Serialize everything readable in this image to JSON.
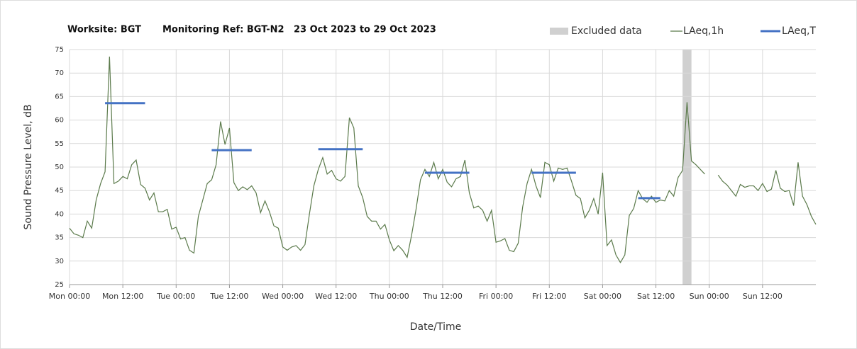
{
  "chart_data": {
    "type": "line",
    "title": [
      "Worksite: BGT",
      "Monitoring Ref: BGT-N2",
      "23 Oct 2023 to 29 Oct 2023"
    ],
    "xlabel": "Date/Time",
    "ylabel": "Sound Pressure Level, dB",
    "xlim": [
      0,
      168
    ],
    "ylim": [
      25,
      75
    ],
    "yticks": [
      25,
      30,
      35,
      40,
      45,
      50,
      55,
      60,
      65,
      70,
      75
    ],
    "xticks": [
      {
        "value": 0,
        "label": "Mon 00:00"
      },
      {
        "value": 12,
        "label": "Mon 12:00"
      },
      {
        "value": 24,
        "label": "Tue 00:00"
      },
      {
        "value": 36,
        "label": "Tue 12:00"
      },
      {
        "value": 48,
        "label": "Wed 00:00"
      },
      {
        "value": 60,
        "label": "Wed 12:00"
      },
      {
        "value": 72,
        "label": "Thu 00:00"
      },
      {
        "value": 84,
        "label": "Thu 12:00"
      },
      {
        "value": 96,
        "label": "Fri 00:00"
      },
      {
        "value": 108,
        "label": "Fri 12:00"
      },
      {
        "value": 120,
        "label": "Sat 00:00"
      },
      {
        "value": 132,
        "label": "Sat 12:00"
      },
      {
        "value": 144,
        "label": "Sun 00:00"
      },
      {
        "value": 156,
        "label": "Sun 12:00"
      }
    ],
    "grid": true,
    "excluded": {
      "name": "Excluded data",
      "color": "#d0d0d0",
      "x": [
        138,
        140
      ]
    },
    "series": [
      {
        "name": "LAeq,1h",
        "color": "#5b7a4b",
        "x": [
          0,
          1,
          2,
          3,
          4,
          5,
          6,
          7,
          8,
          9,
          10,
          11,
          12,
          13,
          14,
          15,
          16,
          17,
          18,
          19,
          20,
          21,
          22,
          23,
          24,
          25,
          26,
          27,
          28,
          29,
          30,
          31,
          32,
          33,
          34,
          35,
          36,
          37,
          38,
          39,
          40,
          41,
          42,
          43,
          44,
          45,
          46,
          47,
          48,
          49,
          50,
          51,
          52,
          53,
          54,
          55,
          56,
          57,
          58,
          59,
          60,
          61,
          62,
          63,
          64,
          65,
          66,
          67,
          68,
          69,
          70,
          71,
          72,
          73,
          74,
          75,
          76,
          77,
          78,
          79,
          80,
          81,
          82,
          83,
          84,
          85,
          86,
          87,
          88,
          89,
          90,
          91,
          92,
          93,
          94,
          95,
          96,
          97,
          98,
          99,
          100,
          101,
          102,
          103,
          104,
          105,
          106,
          107,
          108,
          109,
          110,
          111,
          112,
          113,
          114,
          115,
          116,
          117,
          118,
          119,
          120,
          121,
          122,
          123,
          124,
          125,
          126,
          127,
          128,
          129,
          130,
          131,
          132,
          133,
          134,
          135,
          136,
          137,
          138,
          139,
          140,
          141,
          142,
          143,
          144,
          145,
          146,
          147,
          148,
          149,
          150,
          151,
          152,
          153,
          154,
          155,
          156,
          157,
          158,
          159,
          160,
          161,
          162,
          163,
          164,
          165,
          166,
          167,
          168
        ],
        "values": [
          37,
          35.8,
          35.5,
          35,
          38.5,
          37,
          43,
          46.5,
          49,
          73.5,
          46.5,
          47,
          48,
          47.5,
          50.5,
          51.5,
          46.3,
          45.5,
          43,
          44.5,
          40.5,
          40.5,
          41,
          36.8,
          37.2,
          34.7,
          35,
          32.3,
          31.7,
          39.5,
          43,
          46.5,
          47.3,
          50.5,
          59.7,
          54.8,
          58.3,
          46.7,
          45,
          45.8,
          45.2,
          46,
          44.5,
          40.3,
          42.8,
          40.5,
          37.5,
          37,
          33,
          32.3,
          33,
          33.3,
          32.3,
          33.5,
          40,
          46,
          49.5,
          52,
          48.5,
          49.3,
          47.5,
          47,
          48,
          60.5,
          58.3,
          46,
          43.5,
          39.5,
          38.5,
          38.5,
          36.8,
          37.8,
          34.5,
          32.2,
          33.3,
          32.3,
          30.8,
          35.5,
          41,
          47.3,
          49.5,
          48,
          51,
          47.5,
          49.5,
          46.8,
          45.8,
          47.5,
          48,
          51.5,
          44.5,
          41.3,
          41.7,
          40.8,
          38.5,
          40.8,
          34,
          34.3,
          34.8,
          32.3,
          32,
          33.8,
          41.5,
          46.5,
          49.5,
          46,
          43.5,
          51,
          50.5,
          47,
          49.8,
          49.5,
          49.8,
          47,
          44,
          43.3,
          39.2,
          40.8,
          43.3,
          40,
          48.8,
          33.3,
          34.5,
          31.3,
          29.7,
          31.3,
          39.7,
          41.2,
          45,
          43.3,
          42.5,
          43.8,
          42.5,
          43,
          42.8,
          45,
          43.8,
          47.8,
          49.3,
          63.8,
          51.3,
          50.5,
          49.5,
          48.5,
          null,
          null,
          48.3,
          47,
          46.2,
          45,
          43.8,
          46.3,
          45.7,
          46,
          46,
          45,
          46.5,
          44.8,
          45.3,
          49.3,
          45.5,
          44.8,
          45,
          41.8,
          51,
          43.8,
          42,
          39.5,
          37.8
        ]
      }
    ],
    "periods": {
      "name": "LAeq,T",
      "color": "#4472c4",
      "segments": [
        {
          "x": [
            8,
            17
          ],
          "value": 63.6
        },
        {
          "x": [
            32,
            41
          ],
          "value": 53.6
        },
        {
          "x": [
            56,
            66
          ],
          "value": 53.8
        },
        {
          "x": [
            80,
            90
          ],
          "value": 48.8
        },
        {
          "x": [
            104,
            114
          ],
          "value": 48.8
        },
        {
          "x": [
            128,
            133
          ],
          "value": 43.4
        }
      ]
    }
  }
}
